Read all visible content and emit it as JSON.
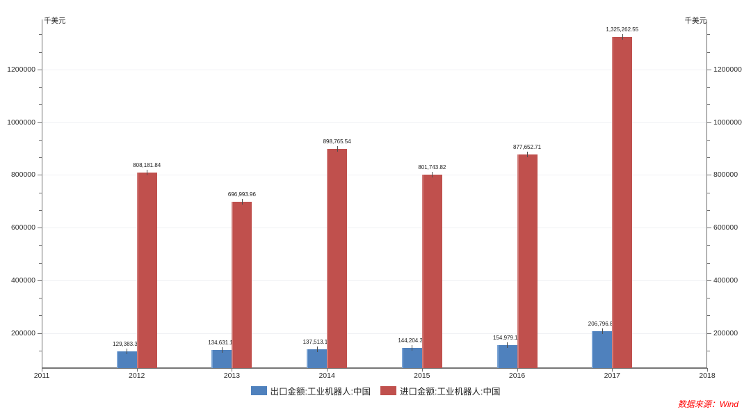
{
  "chart_data": {
    "type": "bar",
    "title": "",
    "y_unit": "千美元",
    "x_range": [
      2011,
      2018
    ],
    "x_ticks": [
      2011,
      2012,
      2013,
      2014,
      2015,
      2016,
      2017,
      2018
    ],
    "categories": [
      2012,
      2013,
      2014,
      2015,
      2016,
      2017
    ],
    "series": [
      {
        "name": "出口金额:工业机器人:中国",
        "color": "#4f81bd",
        "highlight": "#7aa3d4",
        "values": [
          129383.36,
          134631.11,
          137513.16,
          144204.3,
          154979.18,
          206796.8
        ]
      },
      {
        "name": "进口金额:工业机器人:中国",
        "color": "#c0504d",
        "highlight": "#d07b79",
        "values": [
          808181.84,
          696993.96,
          898765.54,
          801743.82,
          877652.71,
          1325262.55
        ]
      }
    ],
    "y_min": 66666.67,
    "y_max": 1390000,
    "y_major_ticks": [
      200000,
      400000,
      600000,
      800000,
      1000000,
      1200000
    ],
    "y_minor_step": 66666.67,
    "grid": true,
    "legend_position": "bottom"
  },
  "source_note": "数据来源：Wind"
}
